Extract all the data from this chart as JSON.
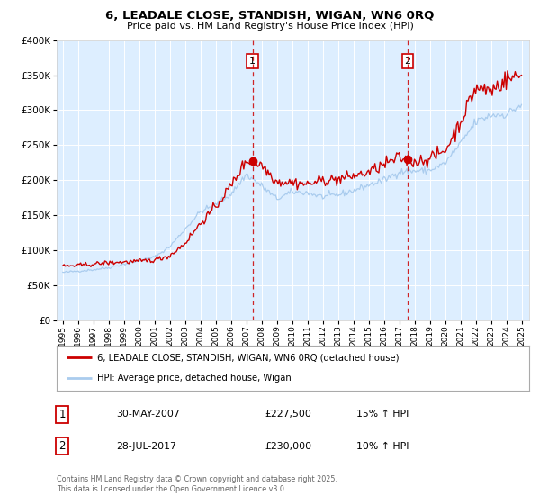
{
  "title": "6, LEADALE CLOSE, STANDISH, WIGAN, WN6 0RQ",
  "subtitle": "Price paid vs. HM Land Registry's House Price Index (HPI)",
  "legend_entry1": "6, LEADALE CLOSE, STANDISH, WIGAN, WN6 0RQ (detached house)",
  "legend_entry2": "HPI: Average price, detached house, Wigan",
  "sale1_label": "1",
  "sale1_date": "30-MAY-2007",
  "sale1_price": "£227,500",
  "sale1_hpi": "15% ↑ HPI",
  "sale2_label": "2",
  "sale2_date": "28-JUL-2017",
  "sale2_price": "£230,000",
  "sale2_hpi": "10% ↑ HPI",
  "footnote": "Contains HM Land Registry data © Crown copyright and database right 2025.\nThis data is licensed under the Open Government Licence v3.0.",
  "red_line_color": "#cc0000",
  "blue_line_color": "#aaccee",
  "vline_color": "#cc0000",
  "background_color": "#ffffff",
  "plot_bg_color": "#ddeeff",
  "grid_color": "#ffffff",
  "sale1_year": 2007.41,
  "sale2_year": 2017.56,
  "sale1_value": 227500,
  "sale2_value": 230000,
  "ylim_max": 400000,
  "ylim_min": 0,
  "xlim_min": 1994.6,
  "xlim_max": 2025.5,
  "years_hpi": [
    1995,
    1996,
    1997,
    1998,
    1999,
    2000,
    2001,
    2002,
    2003,
    2004,
    2005,
    2006,
    2007,
    2008,
    2009,
    2010,
    2011,
    2012,
    2013,
    2014,
    2015,
    2016,
    2017,
    2018,
    2019,
    2020,
    2021,
    2022,
    2023,
    2024,
    2025
  ],
  "hpi_values": [
    68000,
    70000,
    72000,
    75000,
    80000,
    85000,
    90000,
    105000,
    130000,
    155000,
    165000,
    180000,
    208000,
    192000,
    173000,
    183000,
    182000,
    176000,
    179000,
    185000,
    193000,
    200000,
    212000,
    213000,
    214000,
    224000,
    252000,
    283000,
    293000,
    294000,
    308000
  ],
  "prop_values": [
    77000,
    78000,
    80000,
    82000,
    83000,
    84000,
    86000,
    92000,
    110000,
    138000,
    162000,
    192000,
    228000,
    222000,
    198000,
    197000,
    194000,
    200000,
    201000,
    206000,
    211000,
    222000,
    232000,
    226000,
    231000,
    242000,
    283000,
    332000,
    328000,
    344000,
    350000
  ]
}
